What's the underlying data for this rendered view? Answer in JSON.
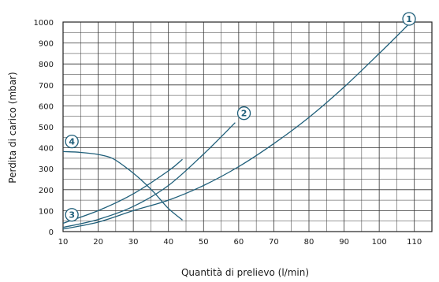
{
  "chart_data": {
    "type": "line",
    "title": "",
    "xlabel": "Quantità di prelievo (l/min)",
    "ylabel": "Perdita di carico (mbar)",
    "xlim": [
      10,
      115
    ],
    "ylim": [
      0,
      1000
    ],
    "x_ticks": [
      10,
      20,
      30,
      40,
      50,
      60,
      70,
      80,
      90,
      100,
      110
    ],
    "y_ticks": [
      0,
      100,
      200,
      300,
      400,
      500,
      600,
      700,
      800,
      900,
      1000
    ],
    "x_tick_labels": [
      "10",
      "20",
      "30",
      "40",
      "50",
      "60",
      "70",
      "80",
      "90",
      "100",
      "110"
    ],
    "y_tick_labels": [
      "0",
      "100",
      "200",
      "300",
      "400",
      "500",
      "600",
      "700",
      "800",
      "900",
      "1000"
    ],
    "grid": true,
    "line_color": "#1f5f7a",
    "series": [
      {
        "marker": "1",
        "x": [
          10,
          20,
          30,
          40,
          50,
          60,
          70,
          80,
          90,
          100,
          109
        ],
        "y": [
          12,
          45,
          100,
          150,
          220,
          310,
          420,
          545,
          690,
          850,
          1000
        ]
      },
      {
        "marker": "2",
        "x": [
          10,
          20,
          30,
          40,
          50,
          59
        ],
        "y": [
          20,
          58,
          120,
          220,
          370,
          520
        ]
      },
      {
        "marker": "3",
        "x": [
          10,
          20,
          30,
          40,
          44
        ],
        "y": [
          40,
          100,
          180,
          290,
          345
        ]
      },
      {
        "marker": "4",
        "x": [
          10,
          15,
          20,
          24,
          28,
          32,
          36,
          40,
          44
        ],
        "y": [
          382,
          378,
          368,
          350,
          305,
          250,
          185,
          110,
          55
        ]
      }
    ],
    "markers": [
      {
        "text": "1",
        "at_x": 108.5,
        "at_y": 1015
      },
      {
        "text": "2",
        "at_x": 61.5,
        "at_y": 565
      },
      {
        "text": "3",
        "at_x": 12.5,
        "at_y": 80
      },
      {
        "text": "4",
        "at_x": 12.5,
        "at_y": 430
      }
    ]
  }
}
